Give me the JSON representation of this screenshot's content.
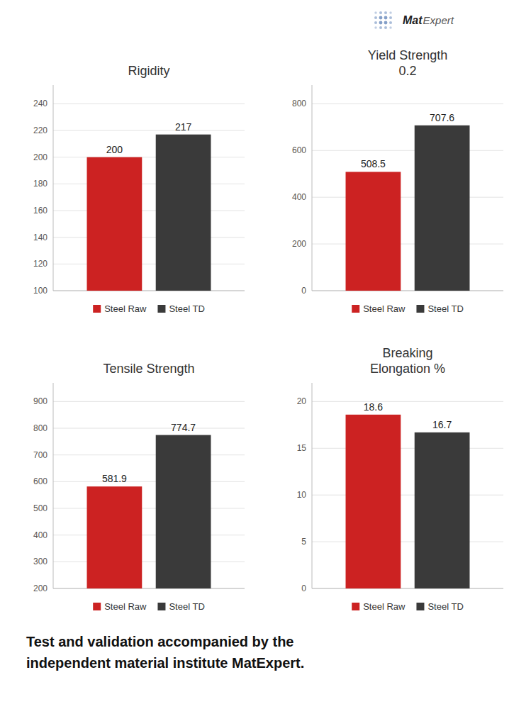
{
  "chart_data": [
    {
      "type": "bar",
      "title": "Rigidity",
      "categories": [
        null
      ],
      "series": [
        {
          "name": "Steel Raw",
          "color": "#cc2222",
          "values": [
            200
          ]
        },
        {
          "name": "Steel TD",
          "color": "#3a3a3a",
          "values": [
            217
          ]
        }
      ],
      "ylim": [
        100,
        254
      ],
      "yticks": [
        100,
        120,
        140,
        160,
        180,
        200,
        220,
        240
      ],
      "grid": true,
      "legend": "bottom",
      "data_labels": true,
      "tick_labels": "y"
    },
    {
      "type": "bar",
      "title": "Yield Strength\n0.2",
      "categories": [
        null
      ],
      "series": [
        {
          "name": "Steel Raw",
          "color": "#cc2222",
          "values": [
            508.5
          ]
        },
        {
          "name": "Steel TD",
          "color": "#3a3a3a",
          "values": [
            707.6
          ]
        }
      ],
      "ylim": [
        0,
        880
      ],
      "yticks": [
        0,
        200,
        400,
        600,
        800
      ],
      "grid": true,
      "legend": "bottom",
      "data_labels": true,
      "tick_labels": "y"
    },
    {
      "type": "bar",
      "title": "Tensile Strength",
      "categories": [
        null
      ],
      "series": [
        {
          "name": "Steel Raw",
          "color": "#cc2222",
          "values": [
            581.9
          ]
        },
        {
          "name": "Steel TD",
          "color": "#3a3a3a",
          "values": [
            774.7
          ]
        }
      ],
      "ylim": [
        200,
        970
      ],
      "yticks": [
        200,
        300,
        400,
        500,
        600,
        700,
        800,
        900
      ],
      "grid": true,
      "legend": "bottom",
      "data_labels": true,
      "tick_labels": "y"
    },
    {
      "type": "bar",
      "title": "Breaking\nElongation %",
      "categories": [
        null
      ],
      "series": [
        {
          "name": "Steel Raw",
          "color": "#cc2222",
          "values": [
            18.6
          ]
        },
        {
          "name": "Steel TD",
          "color": "#3a3a3a",
          "values": [
            16.7
          ]
        }
      ],
      "ylim": [
        0,
        22
      ],
      "yticks": [
        0,
        5,
        10,
        15,
        20
      ],
      "grid": true,
      "legend": "bottom",
      "data_labels": true,
      "tick_labels": "y"
    }
  ],
  "logo_text": [
    "Mat",
    "Expert"
  ],
  "footer_text": "Test and validation accompanied by the\nindependent material institute MatExpert."
}
